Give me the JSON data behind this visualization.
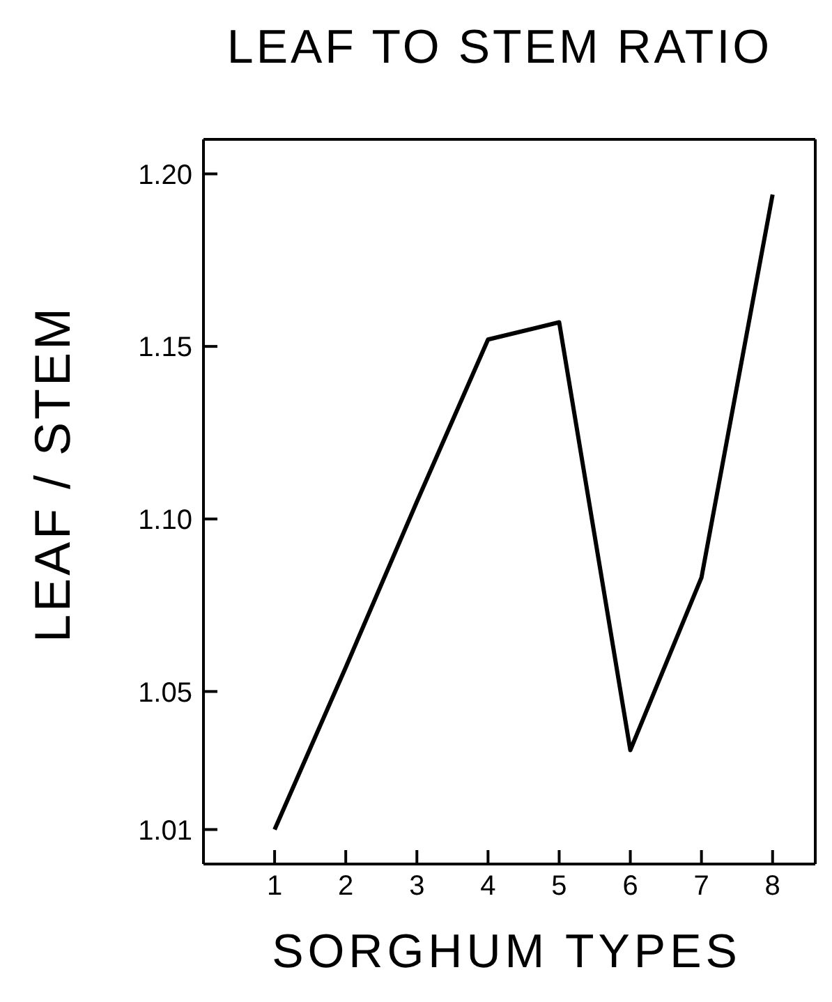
{
  "chart_data": {
    "type": "line",
    "title": "LEAF TO STEM RATIO",
    "xlabel": "SORGHUM TYPES",
    "ylabel": "LEAF / STEM",
    "x": [
      1,
      2,
      3,
      4,
      5,
      6,
      7,
      8
    ],
    "series": [
      {
        "color": "#000000",
        "values": [
          1.01,
          1.057,
          1.105,
          1.152,
          1.157,
          1.033,
          1.083,
          1.194
        ]
      }
    ],
    "xlim": [
      0,
      8.6
    ],
    "xticks": [
      1,
      2,
      3,
      4,
      5,
      6,
      7,
      8
    ],
    "ylim": [
      1.0,
      1.21
    ],
    "yticks": [
      1.01,
      1.05,
      {
        "value": 1.1,
        "label": "1.10"
      },
      1.15,
      {
        "value": 1.2,
        "label": "1.20"
      }
    ],
    "grid": false,
    "legend": false,
    "marker": "none",
    "line_style": "solid"
  }
}
